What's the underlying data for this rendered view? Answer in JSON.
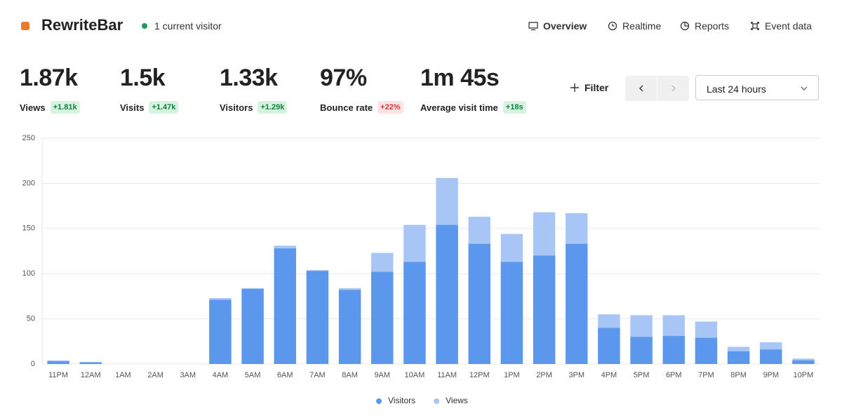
{
  "header": {
    "title": "RewriteBar",
    "visitors": "1 current visitor",
    "nav": [
      "Overview",
      "Realtime",
      "Reports",
      "Event data"
    ]
  },
  "metrics": [
    {
      "value": "1.87k",
      "label": "Views",
      "change": "+1.81k",
      "color": "#13803f",
      "background": "#d6f3df"
    },
    {
      "value": "1.5k",
      "label": "Visits",
      "change": "+1.47k",
      "color": "#13803f",
      "background": "#d6f3df"
    },
    {
      "value": "1.33k",
      "label": "Visitors",
      "change": "+1.29k",
      "color": "#13803f",
      "background": "#d6f3df"
    },
    {
      "value": "97%",
      "label": "Bounce rate",
      "change": "+22%",
      "color": "#d23a3a",
      "background": "#fde3e3"
    },
    {
      "value": "1m 45s",
      "label": "Average visit time",
      "change": "+18s",
      "color": "#13803f",
      "background": "#d6f3df"
    }
  ],
  "controls": {
    "filter": "Filter",
    "range": "Last 24 hours"
  },
  "chart_data": {
    "type": "bar",
    "categories": [
      "11PM",
      "12AM",
      "1AM",
      "2AM",
      "3AM",
      "4AM",
      "5AM",
      "6AM",
      "7AM",
      "8AM",
      "9AM",
      "10AM",
      "11AM",
      "12PM",
      "1PM",
      "2PM",
      "3PM",
      "4PM",
      "5PM",
      "6PM",
      "7PM",
      "8PM",
      "9PM",
      "10PM"
    ],
    "series": [
      {
        "name": "Views",
        "color": "#a7c6f5",
        "values": [
          4,
          2,
          0,
          0,
          0,
          73,
          84,
          131,
          104,
          84,
          123,
          154,
          206,
          163,
          144,
          168,
          167,
          55,
          54,
          54,
          47,
          19,
          24,
          6
        ]
      },
      {
        "name": "Visitors",
        "color": "#5b97ec",
        "values": [
          3,
          2,
          0,
          0,
          0,
          71,
          83,
          128,
          103,
          82,
          102,
          113,
          154,
          133,
          113,
          120,
          133,
          40,
          30,
          31,
          29,
          14,
          16,
          4
        ]
      }
    ],
    "ylim": [
      0,
      250
    ],
    "yticks": [
      0,
      50,
      100,
      150,
      200,
      250
    ],
    "grid": true,
    "legend": "bottom"
  }
}
